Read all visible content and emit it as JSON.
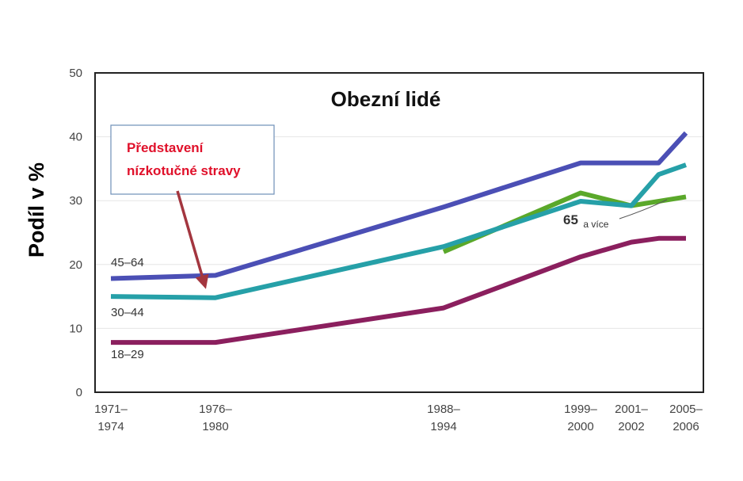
{
  "chart_data": {
    "type": "line",
    "title": "Obezní lidé",
    "ylabel": "Podíl v %",
    "xlabel": "",
    "ylim": [
      0,
      50
    ],
    "yticks": [
      0,
      10,
      20,
      30,
      40,
      50
    ],
    "grid": true,
    "x_categories": [
      {
        "line1": "1971–",
        "line2": "1974"
      },
      {
        "line1": "1976–",
        "line2": "1980"
      },
      {
        "line1": "1988–",
        "line2": "1994"
      },
      {
        "line1": "1999–",
        "line2": "2000"
      },
      {
        "line1": "2001–",
        "line2": "2002"
      },
      {
        "line1": "2005–",
        "line2": "2006"
      }
    ],
    "series": [
      {
        "name": "45–64",
        "color": "#4b4fb5",
        "points": [
          [
            1972.5,
            17.8
          ],
          [
            1978,
            18.3
          ],
          [
            1991,
            29.0
          ],
          [
            1999.5,
            35.9
          ],
          [
            2001.5,
            35.9
          ],
          [
            2003.5,
            35.9
          ],
          [
            2005.5,
            40.6
          ]
        ]
      },
      {
        "name": "30–44",
        "color": "#26a0a8",
        "points": [
          [
            1972.5,
            15.0
          ],
          [
            1978,
            14.8
          ],
          [
            1991,
            22.8
          ],
          [
            1999.5,
            29.9
          ],
          [
            2001.5,
            29.2
          ],
          [
            2003.5,
            34.1
          ],
          [
            2005.5,
            35.6
          ]
        ]
      },
      {
        "name": "18–29",
        "color": "#8b1f5e",
        "points": [
          [
            1972.5,
            7.8
          ],
          [
            1978,
            7.8
          ],
          [
            1991,
            13.2
          ],
          [
            1999.5,
            21.2
          ],
          [
            2001.5,
            23.5
          ],
          [
            2003.5,
            24.1
          ],
          [
            2005.5,
            24.1
          ]
        ]
      },
      {
        "name": "65 a více",
        "color": "#5aa82a",
        "points": [
          [
            1991,
            22.0
          ],
          [
            1999.5,
            31.2
          ],
          [
            2001.5,
            29.2
          ],
          [
            2005.5,
            30.6
          ]
        ]
      }
    ],
    "annotations": {
      "callout_line1": "Představení",
      "callout_line2": "nízkotučné stravy",
      "senior_label_main": "65",
      "senior_label_sub": "a více"
    }
  }
}
